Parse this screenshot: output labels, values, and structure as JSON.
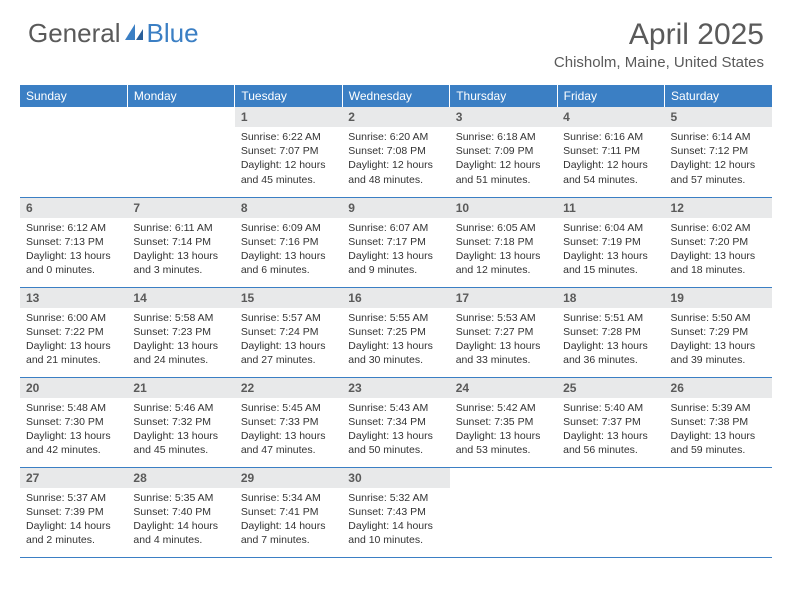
{
  "logo": {
    "general": "General",
    "blue": "Blue"
  },
  "title": "April 2025",
  "location": "Chisholm, Maine, United States",
  "colors": {
    "header_bg": "#3b7fc4",
    "header_text": "#ffffff",
    "daynum_bg": "#e8e9ea",
    "text_gray": "#5a5a5a",
    "body_text": "#333333",
    "row_border": "#3b7fc4"
  },
  "dayHeaders": [
    "Sunday",
    "Monday",
    "Tuesday",
    "Wednesday",
    "Thursday",
    "Friday",
    "Saturday"
  ],
  "weeks": [
    [
      null,
      null,
      {
        "n": "1",
        "sr": "6:22 AM",
        "ss": "7:07 PM",
        "dl": "12 hours and 45 minutes."
      },
      {
        "n": "2",
        "sr": "6:20 AM",
        "ss": "7:08 PM",
        "dl": "12 hours and 48 minutes."
      },
      {
        "n": "3",
        "sr": "6:18 AM",
        "ss": "7:09 PM",
        "dl": "12 hours and 51 minutes."
      },
      {
        "n": "4",
        "sr": "6:16 AM",
        "ss": "7:11 PM",
        "dl": "12 hours and 54 minutes."
      },
      {
        "n": "5",
        "sr": "6:14 AM",
        "ss": "7:12 PM",
        "dl": "12 hours and 57 minutes."
      }
    ],
    [
      {
        "n": "6",
        "sr": "6:12 AM",
        "ss": "7:13 PM",
        "dl": "13 hours and 0 minutes."
      },
      {
        "n": "7",
        "sr": "6:11 AM",
        "ss": "7:14 PM",
        "dl": "13 hours and 3 minutes."
      },
      {
        "n": "8",
        "sr": "6:09 AM",
        "ss": "7:16 PM",
        "dl": "13 hours and 6 minutes."
      },
      {
        "n": "9",
        "sr": "6:07 AM",
        "ss": "7:17 PM",
        "dl": "13 hours and 9 minutes."
      },
      {
        "n": "10",
        "sr": "6:05 AM",
        "ss": "7:18 PM",
        "dl": "13 hours and 12 minutes."
      },
      {
        "n": "11",
        "sr": "6:04 AM",
        "ss": "7:19 PM",
        "dl": "13 hours and 15 minutes."
      },
      {
        "n": "12",
        "sr": "6:02 AM",
        "ss": "7:20 PM",
        "dl": "13 hours and 18 minutes."
      }
    ],
    [
      {
        "n": "13",
        "sr": "6:00 AM",
        "ss": "7:22 PM",
        "dl": "13 hours and 21 minutes."
      },
      {
        "n": "14",
        "sr": "5:58 AM",
        "ss": "7:23 PM",
        "dl": "13 hours and 24 minutes."
      },
      {
        "n": "15",
        "sr": "5:57 AM",
        "ss": "7:24 PM",
        "dl": "13 hours and 27 minutes."
      },
      {
        "n": "16",
        "sr": "5:55 AM",
        "ss": "7:25 PM",
        "dl": "13 hours and 30 minutes."
      },
      {
        "n": "17",
        "sr": "5:53 AM",
        "ss": "7:27 PM",
        "dl": "13 hours and 33 minutes."
      },
      {
        "n": "18",
        "sr": "5:51 AM",
        "ss": "7:28 PM",
        "dl": "13 hours and 36 minutes."
      },
      {
        "n": "19",
        "sr": "5:50 AM",
        "ss": "7:29 PM",
        "dl": "13 hours and 39 minutes."
      }
    ],
    [
      {
        "n": "20",
        "sr": "5:48 AM",
        "ss": "7:30 PM",
        "dl": "13 hours and 42 minutes."
      },
      {
        "n": "21",
        "sr": "5:46 AM",
        "ss": "7:32 PM",
        "dl": "13 hours and 45 minutes."
      },
      {
        "n": "22",
        "sr": "5:45 AM",
        "ss": "7:33 PM",
        "dl": "13 hours and 47 minutes."
      },
      {
        "n": "23",
        "sr": "5:43 AM",
        "ss": "7:34 PM",
        "dl": "13 hours and 50 minutes."
      },
      {
        "n": "24",
        "sr": "5:42 AM",
        "ss": "7:35 PM",
        "dl": "13 hours and 53 minutes."
      },
      {
        "n": "25",
        "sr": "5:40 AM",
        "ss": "7:37 PM",
        "dl": "13 hours and 56 minutes."
      },
      {
        "n": "26",
        "sr": "5:39 AM",
        "ss": "7:38 PM",
        "dl": "13 hours and 59 minutes."
      }
    ],
    [
      {
        "n": "27",
        "sr": "5:37 AM",
        "ss": "7:39 PM",
        "dl": "14 hours and 2 minutes."
      },
      {
        "n": "28",
        "sr": "5:35 AM",
        "ss": "7:40 PM",
        "dl": "14 hours and 4 minutes."
      },
      {
        "n": "29",
        "sr": "5:34 AM",
        "ss": "7:41 PM",
        "dl": "14 hours and 7 minutes."
      },
      {
        "n": "30",
        "sr": "5:32 AM",
        "ss": "7:43 PM",
        "dl": "14 hours and 10 minutes."
      },
      null,
      null,
      null
    ]
  ],
  "labels": {
    "sunrise": "Sunrise: ",
    "sunset": "Sunset: ",
    "daylight": "Daylight: "
  }
}
